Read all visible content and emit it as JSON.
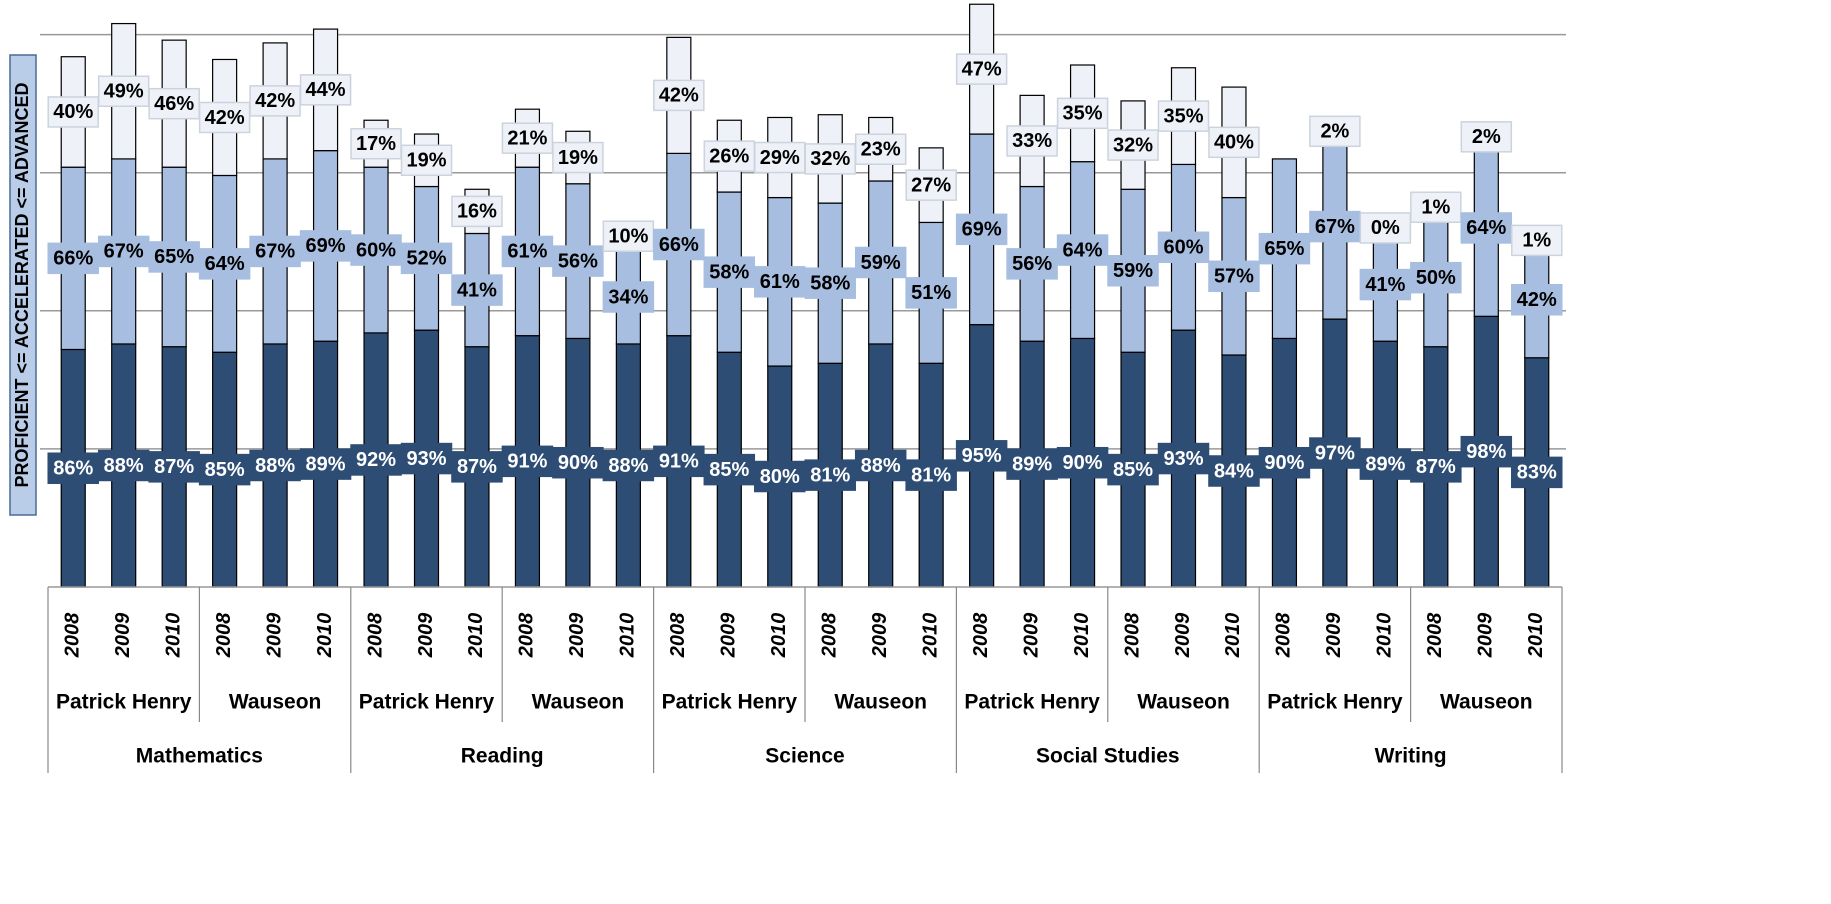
{
  "chart_data": {
    "type": "stacked-bar",
    "y_label": "PROFICIENT <= ACCELERATED <= ADVANCED",
    "categories": [
      "2008",
      "2009",
      "2010",
      "2008",
      "2009",
      "2010",
      "2008",
      "2009",
      "2010",
      "2008",
      "2009",
      "2010",
      "2008",
      "2009",
      "2010",
      "2008",
      "2009",
      "2010",
      "2008",
      "2009",
      "2010",
      "2008",
      "2009",
      "2010",
      "2008",
      "2009",
      "2010",
      "2008",
      "2009",
      "2010"
    ],
    "schools": [
      "Patrick Henry",
      "Wauseon",
      "Patrick Henry",
      "Wauseon",
      "Patrick Henry",
      "Wauseon",
      "Patrick Henry",
      "Wauseon",
      "Patrick Henry",
      "Wauseon"
    ],
    "subjects": [
      "Mathematics",
      "Reading",
      "Science",
      "Social Studies",
      "Writing"
    ],
    "series": [
      {
        "color": "#2e4d74",
        "label_text_color": "#ffffff",
        "values": [
          86,
          88,
          87,
          85,
          88,
          89,
          92,
          93,
          87,
          91,
          90,
          88,
          91,
          85,
          80,
          81,
          88,
          81,
          95,
          89,
          90,
          85,
          93,
          84,
          90,
          97,
          89,
          87,
          98,
          83
        ],
        "value_labels": [
          "86%",
          "88%",
          "87%",
          "85%",
          "88%",
          "89%",
          "92%",
          "93%",
          "87%",
          "91%",
          "90%",
          "88%",
          "91%",
          "85%",
          "80%",
          "81%",
          "88%",
          "81%",
          "95%",
          "89%",
          "90%",
          "85%",
          "93%",
          "84%",
          "90%",
          "97%",
          "89%",
          "87%",
          "98%",
          "83%"
        ]
      },
      {
        "color": "#a7bee0",
        "label_text_color": "#000000",
        "values": [
          66,
          67,
          65,
          64,
          67,
          69,
          60,
          52,
          41,
          61,
          56,
          34,
          66,
          58,
          61,
          58,
          59,
          51,
          69,
          56,
          64,
          59,
          60,
          57,
          65,
          67,
          41,
          50,
          64,
          42
        ],
        "value_labels": [
          "66%",
          "67%",
          "65%",
          "64%",
          "67%",
          "69%",
          "60%",
          "52%",
          "41%",
          "61%",
          "56%",
          "34%",
          "66%",
          "58%",
          "61%",
          "58%",
          "59%",
          "51%",
          "69%",
          "56%",
          "64%",
          "59%",
          "60%",
          "57%",
          "65%",
          "67%",
          "41%",
          "50%",
          "64%",
          "42%"
        ]
      },
      {
        "color": "#eef2f8",
        "label_text_color": "#000000",
        "values": [
          40,
          49,
          46,
          42,
          42,
          44,
          17,
          19,
          16,
          21,
          19,
          10,
          42,
          26,
          29,
          32,
          23,
          27,
          47,
          33,
          35,
          32,
          35,
          40,
          null,
          2,
          0,
          1,
          2,
          1
        ],
        "value_labels": [
          "40%",
          "49%",
          "46%",
          "42%",
          "42%",
          "44%",
          "17%",
          "19%",
          "16%",
          "21%",
          "19%",
          "10%",
          "42%",
          "26%",
          "29%",
          "32%",
          "23%",
          "27%",
          "47%",
          "33%",
          "35%",
          "32%",
          "35%",
          "40%",
          null,
          "2%",
          "0%",
          "1%",
          "2%",
          "1%"
        ]
      }
    ],
    "ylim": [
      0,
      210
    ],
    "yticks": [
      50,
      100,
      150,
      200
    ],
    "grid": true
  }
}
